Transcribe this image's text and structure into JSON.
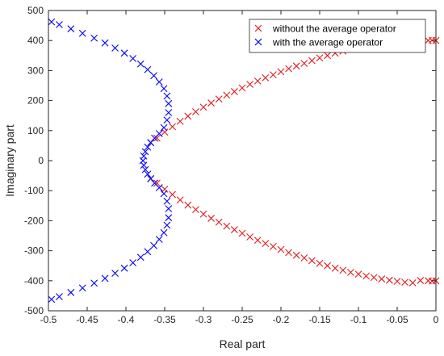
{
  "chart_data": {
    "type": "scatter",
    "xlabel": "Real part",
    "ylabel": "Imaginary part",
    "xlim": [
      -0.5,
      0
    ],
    "ylim": [
      -500,
      500
    ],
    "xticks": [
      -0.5,
      -0.45,
      -0.4,
      -0.35,
      -0.3,
      -0.25,
      -0.2,
      -0.15,
      -0.1,
      -0.05,
      0
    ],
    "xtick_labels": [
      "-0.5",
      "-0.45",
      "-0.4",
      "-0.35",
      "-0.3",
      "-0.25",
      "-0.2",
      "-0.15",
      "-0.1",
      "-0.05",
      "0"
    ],
    "yticks": [
      -500,
      -400,
      -300,
      -200,
      -100,
      0,
      100,
      200,
      300,
      400,
      500
    ],
    "ytick_labels": [
      "-500",
      "-400",
      "-300",
      "-200",
      "-100",
      "0",
      "100",
      "200",
      "300",
      "400",
      "500"
    ],
    "grid": false,
    "legend_position": "top-right",
    "marker": "x",
    "series": [
      {
        "name": "without the average operator",
        "color": "#e41a1c",
        "x": [
          -0.368,
          -0.36,
          -0.35,
          -0.34,
          -0.33,
          -0.32,
          -0.31,
          -0.3,
          -0.29,
          -0.28,
          -0.27,
          -0.26,
          -0.25,
          -0.24,
          -0.23,
          -0.22,
          -0.21,
          -0.2,
          -0.19,
          -0.18,
          -0.17,
          -0.16,
          -0.15,
          -0.14,
          -0.13,
          -0.12,
          -0.11,
          -0.1,
          -0.09,
          -0.08,
          -0.07,
          -0.06,
          -0.05,
          -0.04,
          -0.03,
          -0.02,
          -0.01,
          -0.005,
          0.0,
          -0.368,
          -0.36,
          -0.35,
          -0.34,
          -0.33,
          -0.32,
          -0.31,
          -0.3,
          -0.29,
          -0.28,
          -0.27,
          -0.26,
          -0.25,
          -0.24,
          -0.23,
          -0.22,
          -0.21,
          -0.2,
          -0.19,
          -0.18,
          -0.17,
          -0.16,
          -0.15,
          -0.14,
          -0.13,
          -0.12,
          -0.11,
          -0.1,
          -0.09,
          -0.08,
          -0.07,
          -0.06,
          -0.05,
          -0.04,
          -0.03,
          -0.02,
          -0.01,
          -0.005,
          0.0
        ],
        "y": [
          60,
          75,
          95,
          113,
          131,
          148,
          163,
          178,
          192,
          205,
          218,
          230,
          242,
          254,
          265,
          276,
          286,
          296,
          306,
          315,
          324,
          333,
          342,
          350,
          358,
          365,
          372,
          378,
          384,
          389,
          394,
          398,
          402,
          405,
          407,
          399,
          400,
          401,
          400,
          -60,
          -75,
          -95,
          -113,
          -131,
          -148,
          -163,
          -178,
          -192,
          -205,
          -218,
          -230,
          -242,
          -254,
          -265,
          -276,
          -286,
          -296,
          -306,
          -315,
          -324,
          -333,
          -342,
          -350,
          -358,
          -365,
          -372,
          -378,
          -384,
          -389,
          -394,
          -398,
          -402,
          -405,
          -407,
          -399,
          -400,
          -401,
          -400
        ]
      },
      {
        "name": "with the average operator",
        "color": "#0000ff",
        "x": [
          -0.378,
          -0.377,
          -0.375,
          -0.372,
          -0.368,
          -0.363,
          -0.357,
          -0.351,
          -0.347,
          -0.345,
          -0.345,
          -0.347,
          -0.351,
          -0.357,
          -0.364,
          -0.372,
          -0.381,
          -0.391,
          -0.402,
          -0.414,
          -0.427,
          -0.441,
          -0.456,
          -0.471,
          -0.486,
          -0.496,
          -0.377,
          -0.375,
          -0.372,
          -0.368,
          -0.363,
          -0.357,
          -0.351,
          -0.347,
          -0.345,
          -0.345,
          -0.347,
          -0.351,
          -0.357,
          -0.364,
          -0.372,
          -0.381,
          -0.391,
          -0.402,
          -0.414,
          -0.427,
          -0.441,
          -0.456,
          -0.471,
          -0.486,
          -0.496
        ],
        "y": [
          0,
          15,
          30,
          45,
          60,
          75,
          90,
          110,
          135,
          160,
          190,
          215,
          240,
          262,
          283,
          303,
          322,
          340,
          358,
          375,
          392,
          408,
          424,
          439,
          453,
          462,
          -15,
          -30,
          -45,
          -60,
          -75,
          -90,
          -110,
          -135,
          -160,
          -190,
          -215,
          -240,
          -262,
          -283,
          -303,
          -322,
          -340,
          -358,
          -375,
          -392,
          -408,
          -424,
          -439,
          -453,
          -462
        ]
      }
    ]
  }
}
